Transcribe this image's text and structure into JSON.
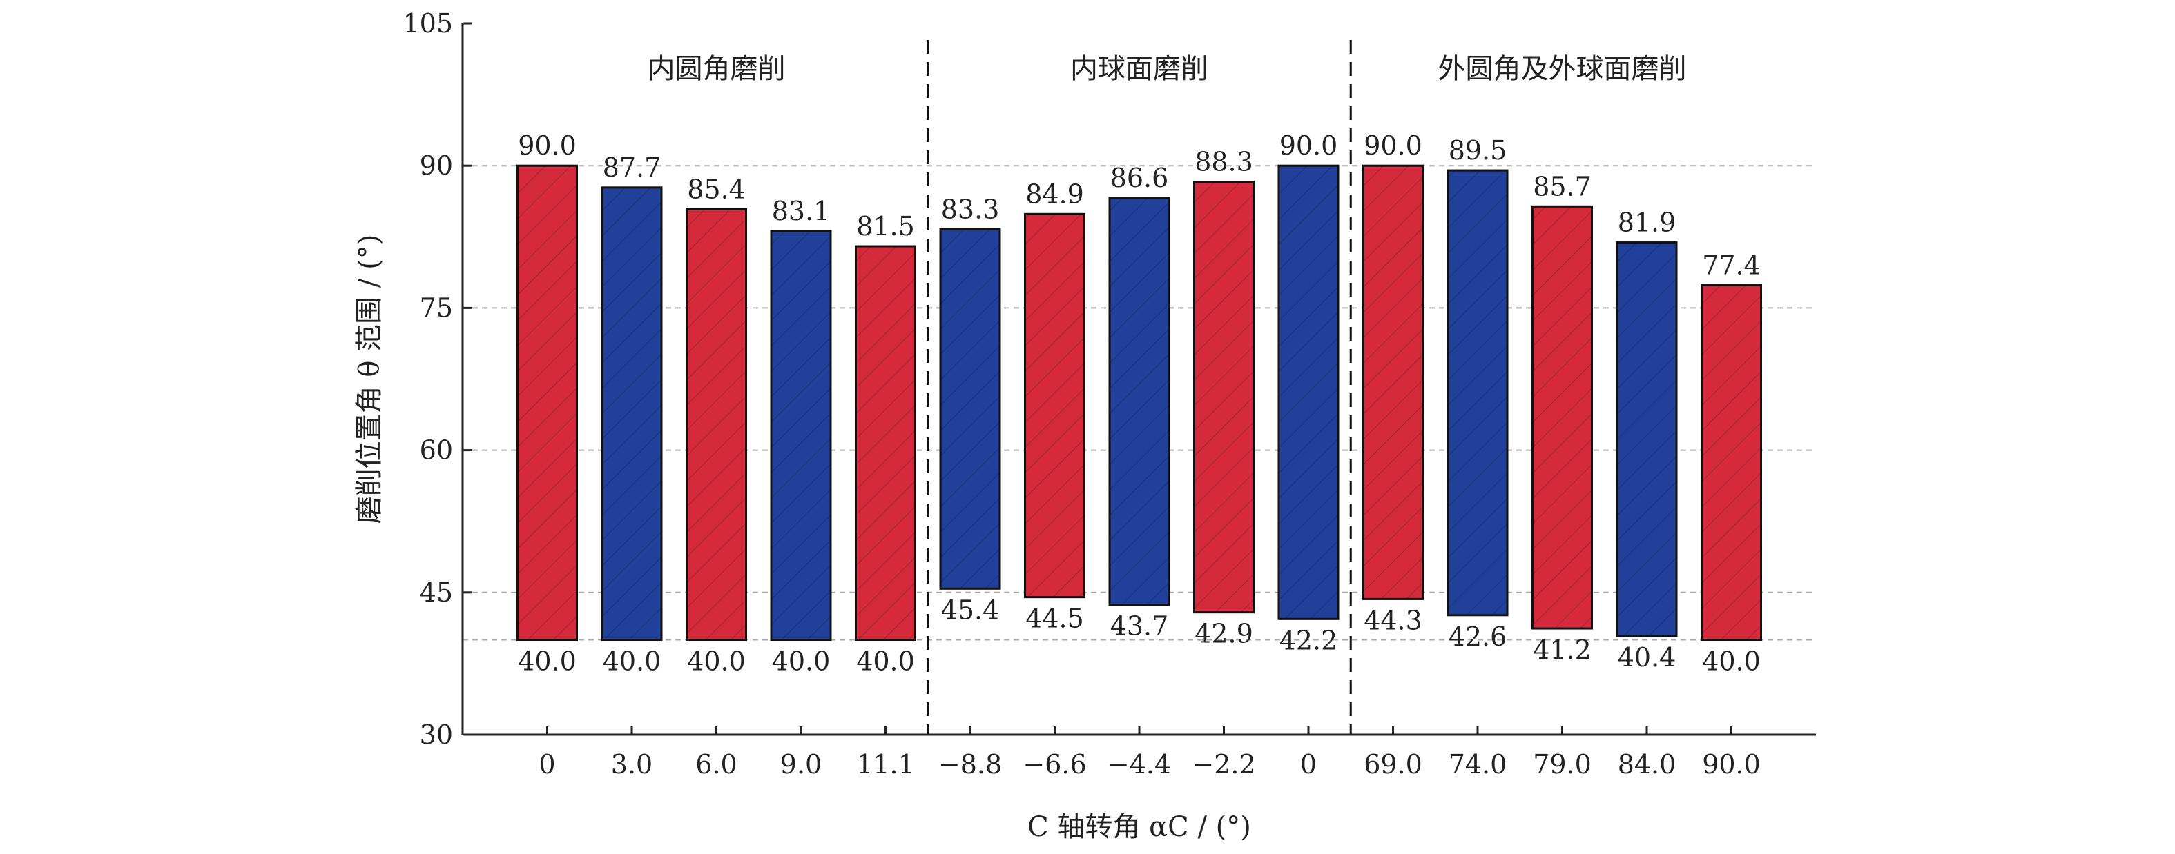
{
  "chart_data": {
    "type": "bar",
    "subtype": "floating-range",
    "xlabel": "C 轴转角 αC / (°)",
    "ylabel": "磨削位置角 θ 范围 / (°)",
    "ylim": [
      30,
      105
    ],
    "yticks": [
      30,
      45,
      60,
      75,
      90,
      105
    ],
    "dashed_gridlines_y": [
      40,
      45,
      60,
      75,
      90
    ],
    "categories": [
      "0",
      "3.0",
      "6.0",
      "9.0",
      "11.1",
      "−8.8",
      "−6.6",
      "−4.4",
      "−2.2",
      "0",
      "69.0",
      "74.0",
      "79.0",
      "84.0",
      "90.0"
    ],
    "series": [
      {
        "low_labels": [
          "40.0",
          "40.0",
          "40.0",
          "40.0",
          "40.0",
          "45.4",
          "44.5",
          "43.7",
          "42.9",
          "42.2",
          "44.3",
          "42.6",
          "41.2",
          "40.4",
          "40.0"
        ],
        "high_labels": [
          "90.0",
          "87.7",
          "85.4",
          "83.1",
          "81.5",
          "83.3",
          "84.9",
          "86.6",
          "88.3",
          "90.0",
          "90.0",
          "89.5",
          "85.7",
          "81.9",
          "77.4"
        ],
        "low": [
          40.0,
          40.0,
          40.0,
          40.0,
          40.0,
          45.4,
          44.5,
          43.7,
          42.9,
          42.2,
          44.3,
          42.6,
          41.2,
          40.4,
          40.0
        ],
        "high": [
          90.0,
          87.7,
          85.4,
          83.1,
          81.5,
          83.3,
          84.9,
          86.6,
          88.3,
          90.0,
          90.0,
          89.5,
          85.7,
          81.9,
          77.4
        ],
        "colors": [
          "#d42a3b",
          "#21409a",
          "#d42a3b",
          "#21409a",
          "#d42a3b",
          "#21409a",
          "#d42a3b",
          "#21409a",
          "#d42a3b",
          "#21409a",
          "#d42a3b",
          "#21409a",
          "#d42a3b",
          "#21409a",
          "#d42a3b"
        ]
      }
    ],
    "groups": [
      {
        "label": "内圆角磨削",
        "start": 0,
        "end": 4
      },
      {
        "label": "内球面磨削",
        "start": 5,
        "end": 9
      },
      {
        "label": "外圆角及外球面磨削",
        "start": 10,
        "end": 14
      }
    ],
    "colors": {
      "red": "#d42a3b",
      "blue": "#21409a",
      "axis": "#222222",
      "grid": "#aaaaaa"
    }
  }
}
